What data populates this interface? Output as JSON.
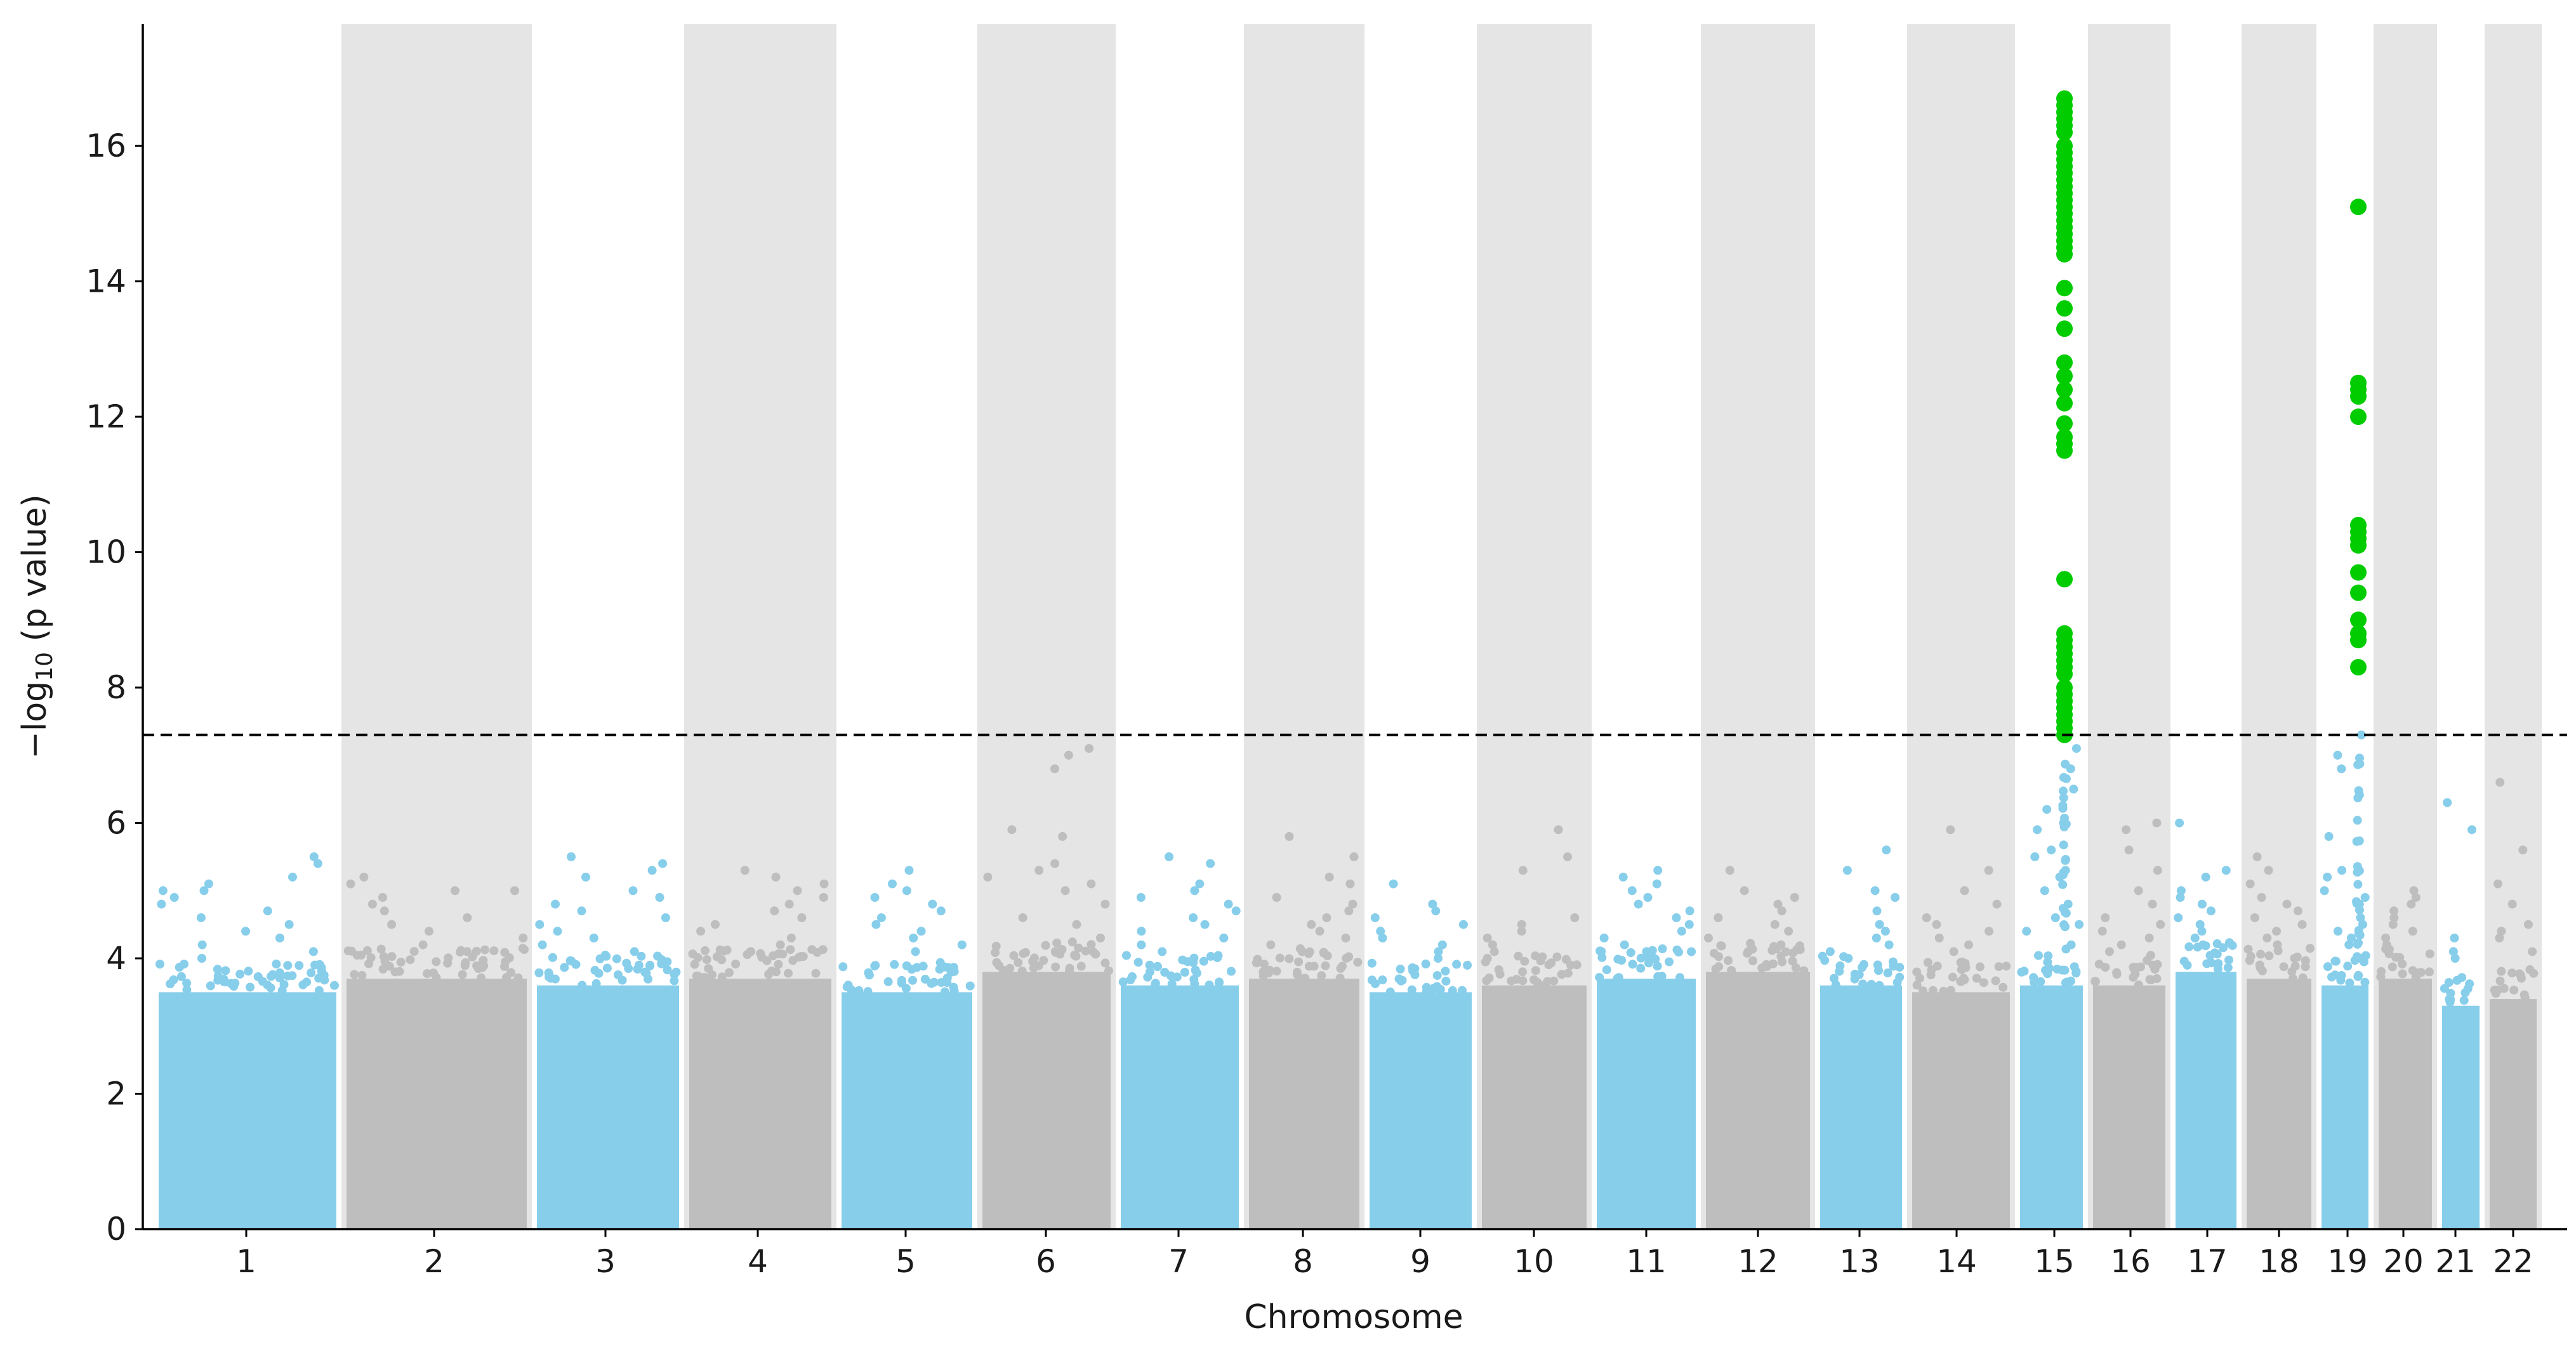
{
  "chart_data": {
    "type": "scatter",
    "subtype": "manhattan",
    "title": "",
    "xlabel": "Chromosome",
    "ylabel_main": "−log",
    "ylabel_sub": "10",
    "ylabel_rest": " (p value)",
    "ylim": [
      0,
      17.8
    ],
    "yticks": [
      0,
      2,
      4,
      6,
      8,
      10,
      12,
      14,
      16
    ],
    "significance_threshold": 7.3,
    "colors": {
      "odd": "#87ceeb",
      "even": "#bebebe",
      "band": "#e5e5e5",
      "significant": "#00cc00",
      "threshold": "#000000"
    },
    "chromosomes": [
      {
        "label": "1",
        "band": false,
        "mass_max": 3.5,
        "peak_points": [
          5.5,
          5.4,
          5.2,
          5.1,
          5.0,
          5.0,
          4.9,
          4.8,
          4.7,
          4.6,
          4.5,
          4.4,
          4.3,
          4.2,
          4.1,
          4.0
        ]
      },
      {
        "label": "2",
        "band": true,
        "mass_max": 3.7,
        "peak_points": [
          5.2,
          5.1,
          5.0,
          5.0,
          4.9,
          4.8,
          4.7,
          4.6,
          4.5,
          4.4,
          4.3,
          4.2,
          4.1
        ]
      },
      {
        "label": "3",
        "band": false,
        "mass_max": 3.6,
        "peak_points": [
          5.5,
          5.4,
          5.3,
          5.2,
          5.0,
          4.9,
          4.8,
          4.7,
          4.6,
          4.5,
          4.4,
          4.3,
          4.2,
          4.1
        ]
      },
      {
        "label": "4",
        "band": true,
        "mass_max": 3.7,
        "peak_points": [
          5.3,
          5.2,
          5.1,
          5.0,
          4.9,
          4.8,
          4.7,
          4.6,
          4.5,
          4.4,
          4.3,
          4.2,
          4.1
        ]
      },
      {
        "label": "5",
        "band": false,
        "mass_max": 3.5,
        "peak_points": [
          5.3,
          5.1,
          5.0,
          4.9,
          4.8,
          4.7,
          4.6,
          4.5,
          4.4,
          4.3,
          4.2,
          4.1
        ]
      },
      {
        "label": "6",
        "band": true,
        "mass_max": 3.8,
        "peak_points": [
          7.1,
          7.0,
          6.8,
          5.9,
          5.8,
          5.4,
          5.3,
          5.2,
          5.1,
          5.0,
          4.8,
          4.6,
          4.5,
          4.3,
          4.1
        ]
      },
      {
        "label": "7",
        "band": false,
        "mass_max": 3.6,
        "peak_points": [
          5.5,
          5.4,
          5.1,
          5.0,
          4.9,
          4.8,
          4.7,
          4.6,
          4.5,
          4.4,
          4.3,
          4.2,
          4.1
        ]
      },
      {
        "label": "8",
        "band": true,
        "mass_max": 3.7,
        "peak_points": [
          5.8,
          5.5,
          5.2,
          5.1,
          4.9,
          4.8,
          4.7,
          4.6,
          4.5,
          4.4,
          4.3,
          4.2,
          4.1
        ]
      },
      {
        "label": "9",
        "band": false,
        "mass_max": 3.5,
        "peak_points": [
          5.1,
          4.8,
          4.7,
          4.6,
          4.5,
          4.4,
          4.3,
          4.2,
          4.1,
          4.0
        ]
      },
      {
        "label": "10",
        "band": true,
        "mass_max": 3.6,
        "peak_points": [
          5.9,
          5.5,
          5.3,
          4.6,
          4.5,
          4.4,
          4.3,
          4.2,
          4.1,
          4.0
        ]
      },
      {
        "label": "11",
        "band": false,
        "mass_max": 3.7,
        "peak_points": [
          5.3,
          5.2,
          5.1,
          5.0,
          4.9,
          4.8,
          4.7,
          4.6,
          4.5,
          4.4,
          4.3,
          4.2,
          4.1
        ]
      },
      {
        "label": "12",
        "band": true,
        "mass_max": 3.8,
        "peak_points": [
          5.3,
          5.0,
          4.9,
          4.8,
          4.7,
          4.6,
          4.5,
          4.4,
          4.3,
          4.2,
          4.1
        ]
      },
      {
        "label": "13",
        "band": false,
        "mass_max": 3.6,
        "peak_points": [
          5.6,
          5.3,
          5.0,
          4.9,
          4.7,
          4.5,
          4.4,
          4.3,
          4.2,
          4.1
        ]
      },
      {
        "label": "14",
        "band": true,
        "mass_max": 3.5,
        "peak_points": [
          5.9,
          5.3,
          5.0,
          4.8,
          4.6,
          4.5,
          4.4,
          4.3,
          4.2,
          4.1
        ]
      },
      {
        "label": "15",
        "band": false,
        "mass_max": 3.6,
        "peak_points": [
          7.1,
          6.8,
          6.5,
          6.2,
          5.9,
          5.6,
          5.5,
          5.3,
          5.2,
          5.0,
          4.8,
          4.6,
          4.5,
          4.4,
          4.2
        ]
      },
      {
        "label": "16",
        "band": true,
        "mass_max": 3.6,
        "peak_points": [
          6.0,
          5.9,
          5.6,
          5.3,
          5.0,
          4.8,
          4.6,
          4.5,
          4.4,
          4.3,
          4.2,
          4.1
        ]
      },
      {
        "label": "17",
        "band": false,
        "mass_max": 3.8,
        "peak_points": [
          6.0,
          5.3,
          5.2,
          5.0,
          4.9,
          4.8,
          4.7,
          4.6,
          4.5,
          4.4,
          4.3,
          4.2
        ]
      },
      {
        "label": "18",
        "band": true,
        "mass_max": 3.7,
        "peak_points": [
          5.5,
          5.3,
          5.1,
          4.9,
          4.8,
          4.7,
          4.6,
          4.5,
          4.4,
          4.3,
          4.2
        ]
      },
      {
        "label": "19",
        "band": false,
        "mass_max": 3.6,
        "peak_points": [
          7.3,
          7.0,
          6.8,
          5.8,
          5.3,
          5.2,
          5.0,
          4.9,
          4.8,
          4.6,
          4.5,
          4.4,
          4.3,
          4.2
        ]
      },
      {
        "label": "20",
        "band": true,
        "mass_max": 3.7,
        "peak_points": [
          5.0,
          4.9,
          4.8,
          4.7,
          4.6,
          4.5,
          4.4,
          4.3,
          4.2
        ]
      },
      {
        "label": "21",
        "band": false,
        "mass_max": 3.3,
        "peak_points": [
          6.3,
          5.9,
          4.3,
          4.1,
          4.0
        ]
      },
      {
        "label": "22",
        "band": true,
        "mass_max": 3.4,
        "peak_points": [
          6.6,
          5.6,
          5.1,
          4.8,
          4.5,
          4.4,
          4.3,
          4.1
        ]
      }
    ],
    "significant_hits": [
      {
        "chromosome": "15",
        "values": [
          16.7,
          16.6,
          16.5,
          16.4,
          16.3,
          16.2,
          16.0,
          15.9,
          15.8,
          15.7,
          15.6,
          15.5,
          15.4,
          15.3,
          15.2,
          15.1,
          15.0,
          14.9,
          14.8,
          14.7,
          14.6,
          14.5,
          14.4,
          13.9,
          13.6,
          13.3,
          12.8,
          12.6,
          12.4,
          12.2,
          11.9,
          11.7,
          11.6,
          11.5,
          9.6,
          8.8,
          8.7,
          8.6,
          8.5,
          8.4,
          8.3,
          8.2,
          8.0,
          7.9,
          7.8,
          7.7,
          7.6,
          7.5,
          7.4,
          7.3
        ]
      },
      {
        "chromosome": "19",
        "values": [
          15.1,
          12.5,
          12.4,
          12.3,
          12.0,
          10.4,
          10.3,
          10.2,
          10.1,
          9.7,
          9.4,
          9.0,
          8.8,
          8.7,
          8.3
        ]
      }
    ]
  }
}
